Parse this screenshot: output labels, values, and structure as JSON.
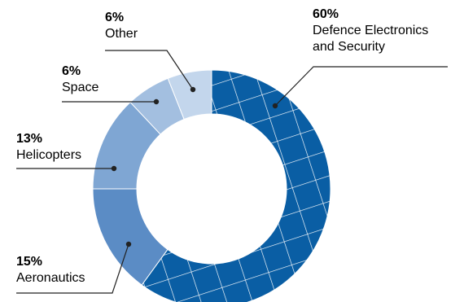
{
  "chart_data": {
    "type": "pie",
    "variant": "donut",
    "unit": "%",
    "slices": [
      {
        "label": "Defence Electronics and Security",
        "label_lines": [
          "Defence Electronics",
          "and Security"
        ],
        "value": 60,
        "value_label": "60%",
        "color": "#0a5ea4",
        "pattern": "grid"
      },
      {
        "label": "Aeronautics",
        "label_lines": [
          "Aeronautics"
        ],
        "value": 15,
        "value_label": "15%",
        "color": "#5b8cc5"
      },
      {
        "label": "Helicopters",
        "label_lines": [
          "Helicopters"
        ],
        "value": 13,
        "value_label": "13%",
        "color": "#7fa6d3"
      },
      {
        "label": "Space",
        "label_lines": [
          "Space"
        ],
        "value": 6,
        "value_label": "6%",
        "color": "#a3bfe0"
      },
      {
        "label": "Other",
        "label_lines": [
          "Other"
        ],
        "value": 6,
        "value_label": "6%",
        "color": "#c3d6ec"
      }
    ]
  }
}
